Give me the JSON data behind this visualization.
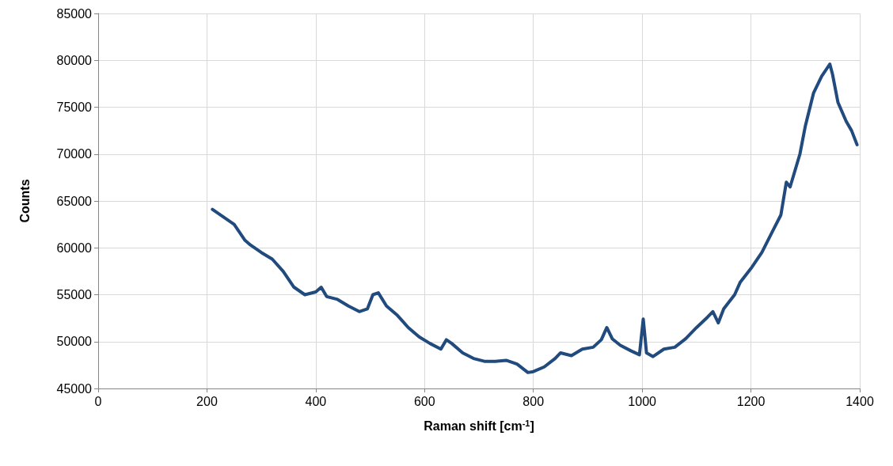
{
  "chart_data": {
    "type": "line",
    "xlabel": "Raman shift [cm$^{-1}$]",
    "ylabel": "Counts",
    "xlim": [
      0,
      1400
    ],
    "xticks": [
      0,
      200,
      400,
      600,
      800,
      1000,
      1200,
      1400
    ],
    "ylim": [
      45000,
      85000
    ],
    "yticks": [
      45000,
      50000,
      55000,
      60000,
      65000,
      70000,
      75000,
      80000,
      85000
    ],
    "grid": true,
    "marker": "none",
    "line_style": "solid",
    "series": [
      {
        "color": "#214b7e",
        "x": [
          210,
          230,
          250,
          270,
          280,
          300,
          320,
          340,
          360,
          380,
          400,
          410,
          420,
          440,
          460,
          480,
          495,
          505,
          515,
          530,
          550,
          570,
          590,
          610,
          630,
          640,
          650,
          670,
          690,
          710,
          730,
          750,
          770,
          790,
          800,
          820,
          840,
          850,
          870,
          890,
          910,
          925,
          935,
          945,
          960,
          980,
          995,
          1002,
          1008,
          1020,
          1040,
          1060,
          1080,
          1100,
          1120,
          1130,
          1140,
          1150,
          1170,
          1180,
          1200,
          1220,
          1240,
          1255,
          1265,
          1272,
          1290,
          1300,
          1315,
          1330,
          1345,
          1350,
          1360,
          1375,
          1385,
          1395
        ],
        "values": [
          64100,
          63300,
          62500,
          60800,
          60300,
          59500,
          58800,
          57500,
          55800,
          55000,
          55300,
          55800,
          54800,
          54500,
          53800,
          53200,
          53500,
          55000,
          55200,
          53800,
          52800,
          51500,
          50500,
          49800,
          49200,
          50200,
          49800,
          48800,
          48200,
          47900,
          47900,
          48000,
          47600,
          46700,
          46800,
          47300,
          48200,
          48800,
          48500,
          49200,
          49400,
          50200,
          51500,
          50300,
          49600,
          49000,
          48600,
          52400,
          48800,
          48400,
          49200,
          49400,
          50300,
          51500,
          52600,
          53200,
          52000,
          53500,
          55000,
          56300,
          57800,
          59500,
          61800,
          63500,
          67000,
          66500,
          70000,
          73000,
          76500,
          78300,
          79600,
          78500,
          75500,
          73500,
          72500,
          71000
        ]
      }
    ]
  }
}
